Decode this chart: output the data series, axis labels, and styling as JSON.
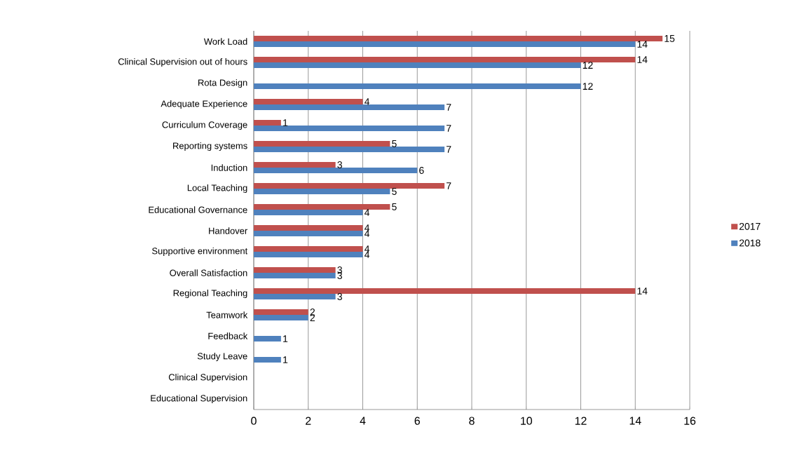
{
  "chart_data": {
    "type": "bar",
    "orientation": "horizontal",
    "categories": [
      "Work Load",
      "Clinical Supervision out of hours",
      "Rota Design",
      "Adequate Experience",
      "Curriculum Coverage",
      "Reporting systems",
      "Induction",
      "Local Teaching",
      "Educational Governance",
      "Handover",
      "Supportive environment",
      "Overall Satisfaction",
      "Regional Teaching",
      "Teamwork",
      "Feedback",
      "Study Leave",
      "Clinical Supervision",
      "Educational Supervision"
    ],
    "series": [
      {
        "name": "2017",
        "color": "#c0504d",
        "values": [
          15,
          14,
          null,
          4,
          1,
          5,
          3,
          7,
          5,
          4,
          4,
          3,
          14,
          2,
          null,
          null,
          null,
          null
        ]
      },
      {
        "name": "2018",
        "color": "#4f81bd",
        "values": [
          14,
          12,
          12,
          7,
          7,
          7,
          6,
          5,
          4,
          4,
          4,
          3,
          3,
          2,
          1,
          1,
          null,
          null
        ]
      }
    ],
    "xlim": [
      0,
      16
    ],
    "xticks": [
      0,
      2,
      4,
      6,
      8,
      10,
      12,
      14,
      16
    ],
    "grid": "x",
    "legend": "right",
    "data_labels": true
  }
}
